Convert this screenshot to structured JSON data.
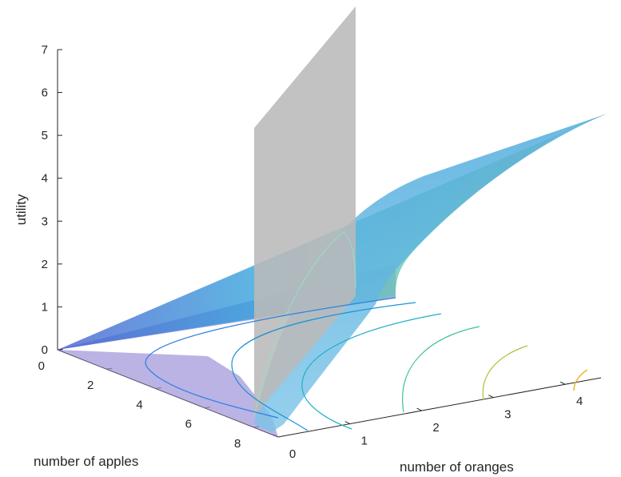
{
  "chart_data": {
    "type": "surface3d",
    "title": "",
    "zlabel": "utility",
    "xlabel": "number of apples",
    "ylabel": "number of oranges",
    "zlim": [
      0,
      7
    ],
    "xlim": [
      0,
      9
    ],
    "ylim": [
      0,
      4.5
    ],
    "z_ticks": [
      "0",
      "1",
      "2",
      "3",
      "4",
      "5",
      "6",
      "7"
    ],
    "x_ticks": [
      "0",
      "2",
      "4",
      "6",
      "8"
    ],
    "y_ticks": [
      "0",
      "1",
      "2",
      "3",
      "4"
    ],
    "grid": false,
    "legend": "none",
    "elements": [
      "utility surface (colormap parula, translucent)",
      "budget constraint plane (gray, vertical)",
      "budget-constrained utility region (purple, translucent)",
      "indifference contour lines on floor",
      "utility-along-budget curve"
    ],
    "contour_levels": [
      0.5,
      1,
      1.5,
      2,
      2.5,
      3
    ],
    "colors": {
      "plane": "#bdbdbd",
      "region": "#8a86d6",
      "surface_low": "#3aa0e0",
      "surface_mid": "#6cd0b0",
      "surface_high": "#f7db8c",
      "contour_1": "#2b7fe0",
      "contour_2": "#1fa7cc",
      "contour_3": "#2eb8a3",
      "contour_4": "#6cc36a",
      "contour_5": "#c2c23a",
      "contour_6": "#f0c030"
    }
  }
}
